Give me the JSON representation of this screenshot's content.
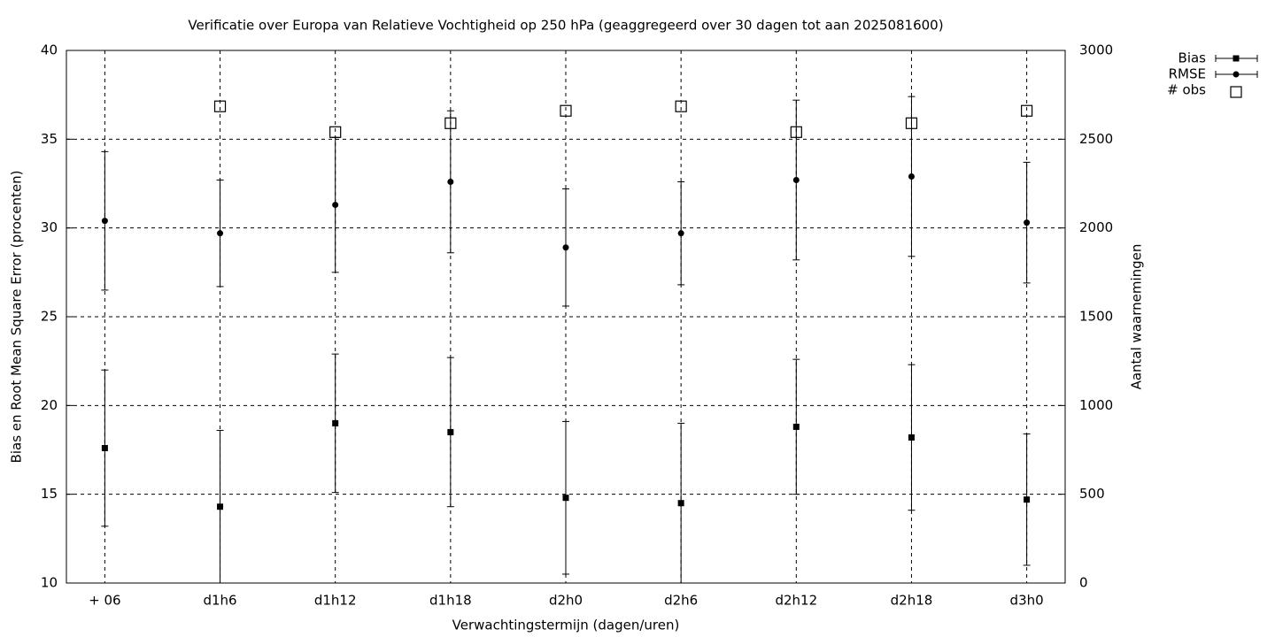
{
  "chart_data": {
    "type": "errorbar",
    "title": "Verificatie over Europa van Relatieve Vochtigheid op 250 hPa (geaggregeerd over 30 dagen tot aan 2025081600)",
    "x_label": "Verwachtingstermijn (dagen/uren)",
    "y_label": "Bias en Root Mean Square Error (procenten)",
    "y2_label": "Aantal waarnemingen",
    "categories": [
      "+ 06",
      "d1h6",
      "d1h12",
      "d1h18",
      "d2h0",
      "d2h6",
      "d2h12",
      "d2h18",
      "d3h0"
    ],
    "ylim": [
      10,
      40
    ],
    "yticks": [
      10,
      15,
      20,
      25,
      30,
      35,
      40
    ],
    "y2lim": [
      0,
      3000
    ],
    "y2ticks": [
      0,
      500,
      1000,
      1500,
      2000,
      2500,
      3000
    ],
    "grid": true,
    "legend": "top-right-outside",
    "series": [
      {
        "name": "Bias",
        "color": "#000000",
        "marker": "filled-square",
        "values": [
          17.6,
          14.3,
          19.0,
          18.5,
          14.8,
          14.5,
          18.8,
          18.2,
          14.7
        ],
        "errors": [
          4.4,
          4.3,
          3.9,
          4.2,
          4.3,
          4.5,
          3.8,
          4.1,
          3.7
        ]
      },
      {
        "name": "RMSE",
        "color": "#000000",
        "marker": "filled-circle",
        "values": [
          30.4,
          29.7,
          31.3,
          32.6,
          28.9,
          29.7,
          32.7,
          32.9,
          30.3
        ],
        "errors": [
          3.9,
          3.0,
          3.8,
          4.0,
          3.3,
          2.9,
          4.5,
          4.5,
          3.4
        ]
      },
      {
        "name": "# obs",
        "color": "#000000",
        "marker": "open-square",
        "axis": "y2",
        "values": [
          null,
          2685,
          2540,
          2590,
          2660,
          2685,
          2540,
          2590,
          2660
        ]
      }
    ]
  }
}
